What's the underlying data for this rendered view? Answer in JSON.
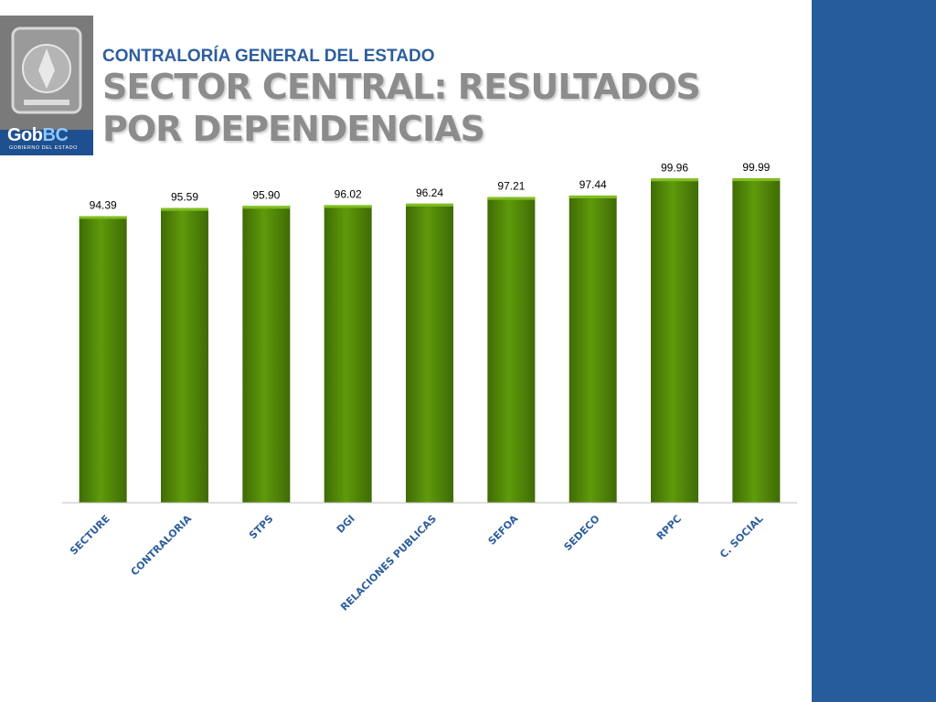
{
  "header": {
    "org_title": "CONTRALORÍA GENERAL DEL ESTADO",
    "title_line1": "SECTOR CENTRAL: RESULTADOS",
    "title_line2": "POR DEPENDENCIAS"
  },
  "logo": {
    "brand_main": "Gob",
    "brand_accent": "BC",
    "subtitle": "GOBIERNO DEL ESTADO"
  },
  "colors": {
    "bar": "#5f9a0a",
    "bar_dark": "#3f6b05",
    "title_gray": "#8c8c8c",
    "org_blue": "#2d5e9e",
    "side_band": "#255c9c"
  },
  "chart_data": {
    "type": "bar",
    "categories": [
      "SECTURE",
      "CONTRALORIA",
      "STPS",
      "DGI",
      "RELACIONES PUBLICAS",
      "SEFOA",
      "SEDECO",
      "RPPC",
      "C. SOCIAL"
    ],
    "values": [
      94.39,
      95.59,
      95.9,
      96.02,
      96.24,
      97.21,
      97.44,
      99.96,
      99.99
    ],
    "value_labels": [
      "94.39",
      "95.59",
      "95.90",
      "96.02",
      "96.24",
      "97.21",
      "97.44",
      "99.96",
      "99.99"
    ],
    "title": "",
    "xlabel": "",
    "ylabel": "",
    "ylim": [
      52,
      100
    ],
    "grid": false,
    "legend": "none"
  }
}
